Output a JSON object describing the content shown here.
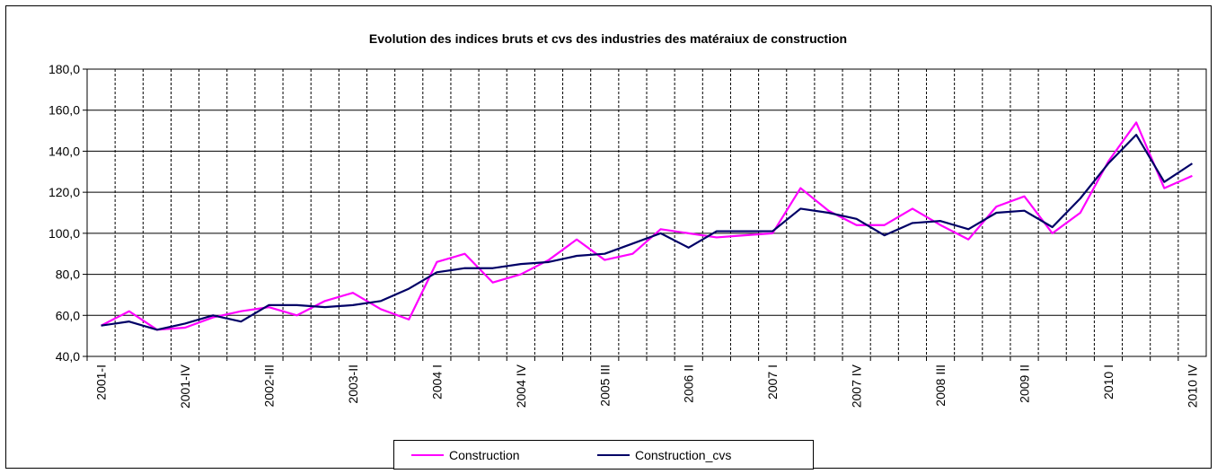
{
  "chart_data": {
    "type": "line",
    "title": "Evolution des indices bruts et cvs des industries des matéraiux de construction",
    "categories": [
      "2001-I",
      null,
      null,
      "2001-IV",
      null,
      null,
      "2002-III",
      null,
      null,
      "2003-II",
      null,
      null,
      "2004 I",
      null,
      null,
      "2004 IV",
      null,
      null,
      "2005 III",
      null,
      null,
      "2006 II",
      null,
      null,
      "2007 I",
      null,
      null,
      "2007 IV",
      null,
      null,
      "2008 III",
      null,
      null,
      "2009 II",
      null,
      null,
      "2010 I",
      null,
      null,
      "2010 IV"
    ],
    "series": [
      {
        "name": "Construction",
        "color": "#ff00ff",
        "values": [
          55,
          62,
          53,
          54,
          59,
          62,
          64,
          60,
          67,
          71,
          63,
          58,
          86,
          90,
          76,
          80,
          87,
          97,
          87,
          90,
          102,
          100,
          98,
          99,
          100,
          122,
          111,
          104,
          104,
          112,
          104,
          97,
          113,
          118,
          100,
          110,
          135,
          154,
          122,
          128
        ]
      },
      {
        "name": "Construction_cvs",
        "color": "#000066",
        "values": [
          55,
          57,
          53,
          56,
          60,
          57,
          65,
          65,
          64,
          65,
          67,
          73,
          81,
          83,
          83,
          85,
          86,
          89,
          90,
          95,
          100,
          93,
          101,
          101,
          101,
          112,
          110,
          107,
          99,
          105,
          106,
          102,
          110,
          111,
          103,
          117,
          134,
          148,
          125,
          134
        ]
      }
    ],
    "ylim": [
      40,
      180
    ],
    "yticks": [
      {
        "value": 40,
        "label": "40,0"
      },
      {
        "value": 60,
        "label": "60,0"
      },
      {
        "value": 80,
        "label": "80,0"
      },
      {
        "value": 100,
        "label": "100,0"
      },
      {
        "value": 120,
        "label": "120,0"
      },
      {
        "value": 140,
        "label": "140,0"
      },
      {
        "value": 160,
        "label": "160,0"
      },
      {
        "value": 180,
        "label": "180,0"
      }
    ],
    "grid": true
  }
}
